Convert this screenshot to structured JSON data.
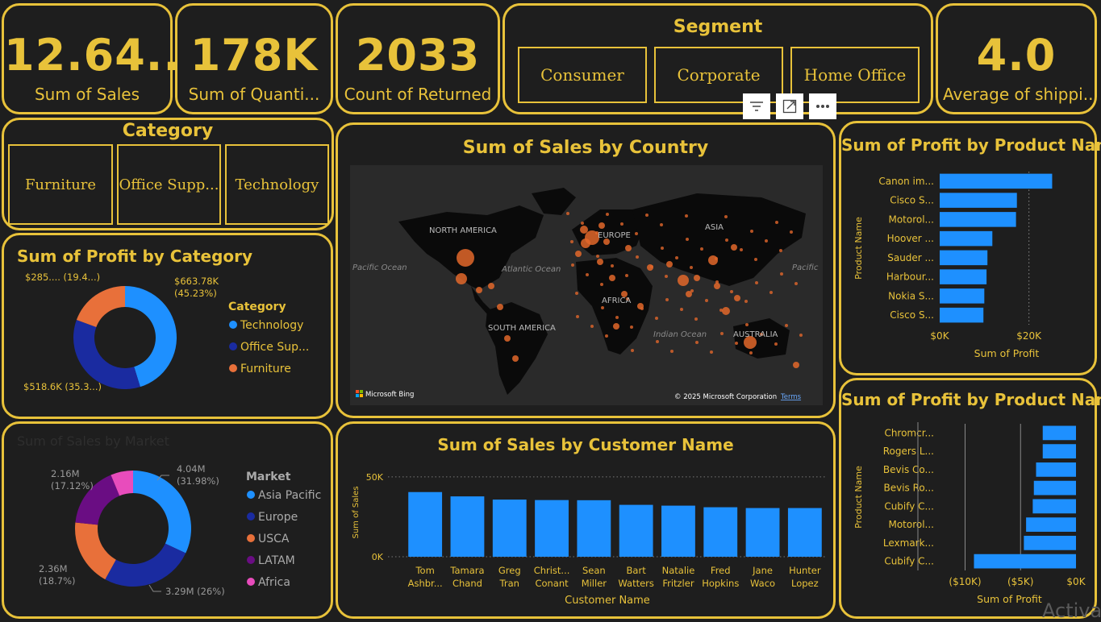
{
  "colors": {
    "accent": "#e8c23a",
    "bg": "#1e1e1e",
    "bar": "#1e90ff",
    "tech": "#1e90ff",
    "office": "#1a2ba0",
    "furniture": "#e8703a",
    "latam": "#6a0d83",
    "africa": "#e84cbc"
  },
  "kpis": [
    {
      "value": "12.64...",
      "label": "Sum of Sales"
    },
    {
      "value": "178K",
      "label": "Sum of Quanti..."
    },
    {
      "value": "2033",
      "label": "Count of Returned"
    },
    {
      "value": "4.0",
      "label": "Average of shippi..."
    }
  ],
  "segment": {
    "title": "Segment",
    "options": [
      "Consumer",
      "Corporate",
      "Home Office"
    ]
  },
  "category_slicer": {
    "title": "Category",
    "options": [
      "Furniture",
      "Office Supp...",
      "Technology"
    ]
  },
  "toolbar": {
    "filter_icon": "filter-icon",
    "focus_icon": "focus-mode-icon",
    "more_icon": "more-options-icon"
  },
  "map": {
    "title": "Sum of Sales by Country",
    "labels": {
      "north_america": "NORTH AMERICA",
      "south_america": "SOUTH AMERICA",
      "europe": "EUROPE",
      "asia": "ASIA",
      "africa": "AFRICA",
      "australia": "AUSTRALIA",
      "pacific_left": "Pacific Ocean",
      "pacific_right": "Pacific",
      "atlantic": "Atlantic Ocean",
      "indian": "Indian Ocean"
    },
    "bing": "Microsoft Bing",
    "copyright": "© 2025 Microsoft Corporation",
    "terms": "Terms"
  },
  "watermark": "Activa",
  "chart_data": [
    {
      "type": "pie",
      "title": "Sum of Profit by Category",
      "legend_title": "Category",
      "legend_position": "right",
      "slices": [
        {
          "name": "Technology",
          "legend": "Technology",
          "value": 663.78,
          "pct": 45.23,
          "label": "$663.78K",
          "pct_label": "(45.23%)"
        },
        {
          "name": "Office Supplies",
          "legend": "Office Sup...",
          "value": 518.6,
          "pct": 35.3,
          "label": "$518.6K (35.3...)",
          "pct_label": ""
        },
        {
          "name": "Furniture",
          "legend": "Furniture",
          "value": 285,
          "pct": 19.4,
          "label": "$285.... (19.4...)",
          "pct_label": ""
        }
      ]
    },
    {
      "type": "pie",
      "title": "Sum of Sales by Market",
      "legend_title": "Market",
      "legend_position": "right",
      "slices": [
        {
          "name": "Asia Pacific",
          "value": 4.04,
          "pct": 31.98,
          "label": "4.04M",
          "pct_label": "(31.98%)"
        },
        {
          "name": "Europe",
          "value": 3.29,
          "pct": 26,
          "label": "3.29M (26%)",
          "pct_label": ""
        },
        {
          "name": "USCA",
          "value": 2.36,
          "pct": 18.7,
          "label": "2.36M",
          "pct_label": "(18.7%)"
        },
        {
          "name": "LATAM",
          "value": 2.16,
          "pct": 17.12,
          "label": "2.16M",
          "pct_label": "(17.12%)"
        },
        {
          "name": "Africa",
          "value": 0.79,
          "pct": 6.2,
          "label": "",
          "pct_label": ""
        }
      ]
    },
    {
      "type": "bar",
      "title": "Sum of Sales by Customer Name",
      "xlabel": "Customer Name",
      "ylabel": "Sum of Sales",
      "ylim": [
        0,
        55000
      ],
      "yticks": [
        {
          "v": 0,
          "t": "0K"
        },
        {
          "v": 50000,
          "t": "50K"
        }
      ],
      "categories": [
        [
          "Tom",
          "Ashbr..."
        ],
        [
          "Tamara",
          "Chand"
        ],
        [
          "Greg",
          "Tran"
        ],
        [
          "Christ...",
          "Conant"
        ],
        [
          "Sean",
          "Miller"
        ],
        [
          "Bart",
          "Watters"
        ],
        [
          "Natalie",
          "Fritzler"
        ],
        [
          "Fred",
          "Hopkins"
        ],
        [
          "Jane",
          "Waco"
        ],
        [
          "Hunter",
          "Lopez"
        ]
      ],
      "values": [
        40500,
        37800,
        35800,
        35500,
        35400,
        32500,
        32000,
        31000,
        30500,
        30500
      ]
    },
    {
      "type": "bar",
      "orientation": "horizontal",
      "title": "Sum of Profit by Product Name",
      "xlabel": "Sum of Profit",
      "ylabel": "Product Name",
      "xlim": [
        0,
        30000
      ],
      "xticks": [
        {
          "v": 0,
          "t": "$0K"
        },
        {
          "v": 20000,
          "t": "$20K"
        }
      ],
      "categories": [
        "Canon im...",
        "Cisco S...",
        "Motorol...",
        "Hoover ...",
        "Sauder ...",
        "Harbour...",
        "Nokia S...",
        "Cisco S..."
      ],
      "values": [
        25200,
        17300,
        17100,
        11800,
        10700,
        10500,
        10000,
        9800
      ]
    },
    {
      "type": "bar",
      "orientation": "horizontal",
      "title": "Sum of Profit by Product Name",
      "xlabel": "Sum of Profit",
      "ylabel": "Product Name",
      "xlim": [
        -12000,
        0
      ],
      "xticks": [
        {
          "v": -10000,
          "t": "($10K)"
        },
        {
          "v": -5000,
          "t": "($5K)"
        },
        {
          "v": 0,
          "t": "$0K"
        }
      ],
      "categories": [
        "Chromcr...",
        "Rogers L...",
        "Bevis Co...",
        "Bevis Ro...",
        "Cubify C...",
        "Motorol...",
        "Lexmark...",
        "Cubify C..."
      ],
      "values": [
        -3000,
        -3000,
        -3600,
        -3800,
        -3900,
        -4500,
        -4700,
        -9200
      ]
    }
  ]
}
